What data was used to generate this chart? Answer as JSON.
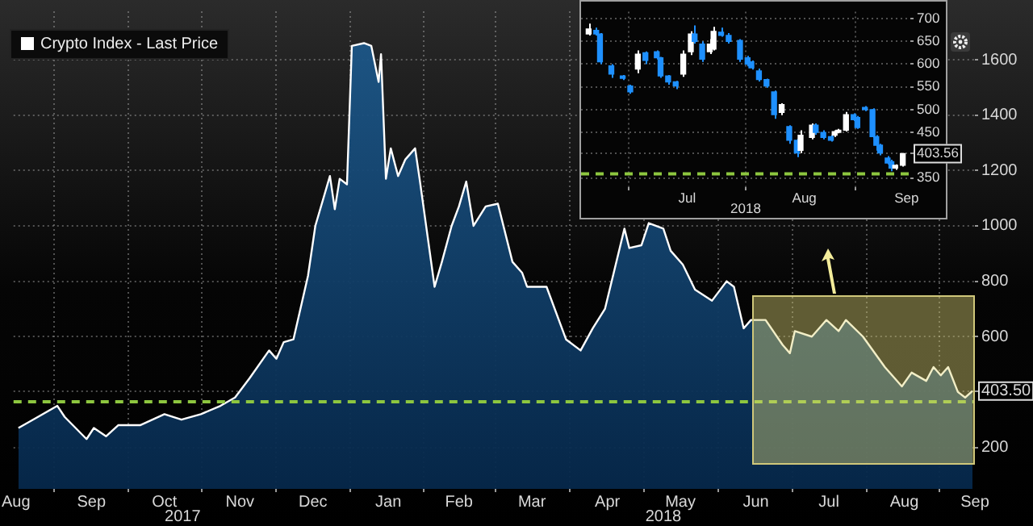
{
  "chart_data": [
    {
      "type": "area",
      "legend": "top left",
      "grid": true,
      "x": [
        "2017-08-17",
        "2017-08-23",
        "2017-09-02",
        "2017-09-05",
        "2017-09-14",
        "2017-09-17",
        "2017-09-22",
        "2017-09-27",
        "2017-10-06",
        "2017-10-16",
        "2017-10-23",
        "2017-10-31",
        "2017-11-08",
        "2017-11-14",
        "2017-11-20",
        "2017-11-28",
        "2017-12-01",
        "2017-12-04",
        "2017-12-08",
        "2017-12-14",
        "2017-12-17",
        "2017-12-20",
        "2017-12-23",
        "2017-12-25",
        "2017-12-27",
        "2017-12-30",
        "2018-01-01",
        "2018-01-06",
        "2018-01-09",
        "2018-01-12",
        "2018-01-13",
        "2018-01-15",
        "2018-01-17",
        "2018-01-20",
        "2018-01-23",
        "2018-01-27",
        "2018-01-29",
        "2018-02-04",
        "2018-02-07",
        "2018-02-11",
        "2018-02-14",
        "2018-02-17",
        "2018-02-20",
        "2018-02-25",
        "2018-03-02",
        "2018-03-08",
        "2018-03-12",
        "2018-03-14",
        "2018-03-22",
        "2018-03-30",
        "2018-04-05",
        "2018-04-10",
        "2018-04-15",
        "2018-04-23",
        "2018-04-25",
        "2018-04-30",
        "2018-05-03",
        "2018-05-09",
        "2018-05-12",
        "2018-05-17",
        "2018-05-22",
        "2018-05-29",
        "2018-06-04",
        "2018-06-07",
        "2018-06-11",
        "2018-06-14",
        "2018-06-20",
        "2018-06-27",
        "2018-06-30",
        "2018-07-02",
        "2018-07-09",
        "2018-07-15",
        "2018-07-20",
        "2018-07-23",
        "2018-07-30",
        "2018-08-08",
        "2018-08-15",
        "2018-08-19",
        "2018-08-25",
        "2018-08-28",
        "2018-08-31",
        "2018-09-03",
        "2018-09-07",
        "2018-09-10",
        "2018-09-13"
      ],
      "series": [
        {
          "name": "Crypto Index - Last Price",
          "color": "#ffffff",
          "values": [
            270,
            300,
            350,
            310,
            230,
            270,
            240,
            280,
            280,
            320,
            300,
            320,
            350,
            380,
            450,
            550,
            520,
            580,
            590,
            820,
            1000,
            1090,
            1180,
            1060,
            1170,
            1150,
            1650,
            1660,
            1650,
            1520,
            1620,
            1170,
            1280,
            1180,
            1240,
            1280,
            1160,
            780,
            870,
            1000,
            1070,
            1160,
            1000,
            1070,
            1080,
            870,
            830,
            780,
            780,
            590,
            550,
            630,
            700,
            990,
            920,
            930,
            1010,
            990,
            910,
            860,
            770,
            730,
            800,
            780,
            630,
            660,
            660,
            570,
            540,
            620,
            600,
            660,
            620,
            660,
            600,
            490,
            420,
            470,
            440,
            490,
            460,
            490,
            400,
            380,
            403.5
          ]
        }
      ],
      "xlim": [
        "2017-08-15",
        "2018-09-14"
      ],
      "xticks": [
        {
          "value": "2017-08-16",
          "label": "Aug"
        },
        {
          "value": "2017-09-16",
          "label": "Sep"
        },
        {
          "value": "2017-10-16",
          "label": "Oct"
        },
        {
          "value": "2017-11-16",
          "label": "Nov"
        },
        {
          "value": "2017-12-16",
          "label": "Dec"
        },
        {
          "value": "2018-01-16",
          "label": "Jan"
        },
        {
          "value": "2018-02-14",
          "label": "Feb"
        },
        {
          "value": "2018-03-16",
          "label": "Mar"
        },
        {
          "value": "2018-04-16",
          "label": "Apr"
        },
        {
          "value": "2018-05-16",
          "label": "May"
        },
        {
          "value": "2018-06-16",
          "label": "Jun"
        },
        {
          "value": "2018-07-16",
          "label": "Jul"
        },
        {
          "value": "2018-08-16",
          "label": "Aug"
        },
        {
          "value": "2018-09-14",
          "label": "Sep"
        }
      ],
      "ylim": [
        50,
        1775
      ],
      "yticks": [
        200,
        {
          "value": 403.5,
          "label": "403.50"
        },
        600,
        800,
        1000,
        1200,
        1400,
        1600
      ],
      "ref_lines": [
        {
          "axis": "y",
          "value": 365,
          "color": "#8dc63f",
          "line_style": "dashed"
        }
      ],
      "annotations": [
        "2017",
        "2018"
      ]
    },
    {
      "type": "candlestick",
      "grid": true,
      "x": [
        "2018-06-20",
        "2018-06-22",
        "2018-06-23",
        "2018-06-26",
        "2018-06-29",
        "2018-07-01",
        "2018-07-03",
        "2018-07-05",
        "2018-07-08",
        "2018-07-09",
        "2018-07-11",
        "2018-07-13",
        "2018-07-15",
        "2018-07-17",
        "2018-07-18",
        "2018-07-20",
        "2018-07-22",
        "2018-07-23",
        "2018-07-25",
        "2018-07-27",
        "2018-07-30",
        "2018-08-01",
        "2018-08-02",
        "2018-08-04",
        "2018-08-06",
        "2018-08-08",
        "2018-08-10",
        "2018-08-12",
        "2018-08-14",
        "2018-08-15",
        "2018-08-18",
        "2018-08-19",
        "2018-08-21",
        "2018-08-23",
        "2018-08-24",
        "2018-08-25",
        "2018-08-27",
        "2018-08-29",
        "2018-08-30",
        "2018-09-01",
        "2018-09-03",
        "2018-09-04",
        "2018-09-05",
        "2018-09-07",
        "2018-09-08",
        "2018-09-09",
        "2018-09-11"
      ],
      "ohlc": [
        [
          666,
          689,
          663,
          677
        ],
        [
          674,
          680,
          663,
          666
        ],
        [
          666,
          668,
          600,
          605
        ],
        [
          596,
          600,
          570,
          578
        ],
        [
          574,
          576,
          565,
          569
        ],
        [
          552,
          555,
          535,
          539
        ],
        [
          589,
          630,
          580,
          622
        ],
        [
          625,
          628,
          600,
          608
        ],
        [
          627,
          630,
          610,
          614
        ],
        [
          614,
          616,
          570,
          574
        ],
        [
          574,
          576,
          555,
          561
        ],
        [
          561,
          563,
          545,
          552
        ],
        [
          578,
          630,
          572,
          622
        ],
        [
          627,
          672,
          620,
          666
        ],
        [
          666,
          685,
          645,
          650
        ],
        [
          644,
          650,
          605,
          611
        ],
        [
          627,
          655,
          622,
          644
        ],
        [
          633,
          682,
          630,
          672
        ],
        [
          670,
          680,
          660,
          663
        ],
        [
          663,
          668,
          645,
          650
        ],
        [
          652,
          655,
          605,
          611
        ],
        [
          614,
          618,
          595,
          600
        ],
        [
          605,
          608,
          588,
          592
        ],
        [
          585,
          590,
          562,
          566
        ],
        [
          566,
          568,
          548,
          552
        ],
        [
          539,
          542,
          480,
          489
        ],
        [
          494,
          514,
          488,
          511
        ],
        [
          463,
          466,
          425,
          433
        ],
        [
          433,
          436,
          396,
          405
        ],
        [
          411,
          455,
          405,
          444
        ],
        [
          439,
          470,
          435,
          466
        ],
        [
          466,
          470,
          445,
          450
        ],
        [
          450,
          455,
          435,
          439
        ],
        [
          441,
          444,
          430,
          433
        ],
        [
          444,
          455,
          440,
          452
        ],
        [
          450,
          458,
          448,
          455
        ],
        [
          455,
          495,
          452,
          489
        ],
        [
          489,
          492,
          475,
          478
        ],
        [
          483,
          486,
          458,
          461
        ],
        [
          505,
          508,
          497,
          500
        ],
        [
          500,
          503,
          438,
          441
        ],
        [
          441,
          444,
          410,
          422
        ],
        [
          422,
          425,
          400,
          405
        ],
        [
          394,
          398,
          380,
          383
        ],
        [
          386,
          390,
          365,
          372
        ],
        [
          372,
          380,
          368,
          378
        ],
        [
          378,
          405,
          375,
          403.56
        ]
      ],
      "colors": [
        "#ffffff",
        "#1e90ff",
        "#1e90ff",
        "#1e90ff",
        "#1e90ff",
        "#1e90ff",
        "#ffffff",
        "#1e90ff",
        "#1e90ff",
        "#1e90ff",
        "#1e90ff",
        "#1e90ff",
        "#ffffff",
        "#ffffff",
        "#1e90ff",
        "#1e90ff",
        "#ffffff",
        "#ffffff",
        "#1e90ff",
        "#1e90ff",
        "#1e90ff",
        "#1e90ff",
        "#1e90ff",
        "#1e90ff",
        "#1e90ff",
        "#1e90ff",
        "#ffffff",
        "#1e90ff",
        "#1e90ff",
        "#ffffff",
        "#ffffff",
        "#1e90ff",
        "#1e90ff",
        "#1e90ff",
        "#ffffff",
        "#ffffff",
        "#ffffff",
        "#1e90ff",
        "#1e90ff",
        "#1e90ff",
        "#1e90ff",
        "#1e90ff",
        "#1e90ff",
        "#1e90ff",
        "#1e90ff",
        "#ffffff",
        "#ffffff"
      ],
      "xlim": [
        "2018-06-18",
        "2018-09-13"
      ],
      "xticks": [
        {
          "value": "2018-07-16",
          "label": "Jul"
        },
        {
          "value": "2018-08-16",
          "label": "Aug"
        },
        {
          "value": "2018-09-12",
          "label": "Sep"
        }
      ],
      "ylim": [
        330,
        715
      ],
      "yticks": [
        350,
        {
          "value": 403.56,
          "label": "403.56"
        },
        450,
        500,
        550,
        600,
        650,
        700
      ],
      "ref_lines": [
        {
          "axis": "y",
          "value": 359,
          "color": "#8dc63f",
          "line_style": "dashed"
        }
      ],
      "annotations": [
        "2018"
      ]
    }
  ]
}
